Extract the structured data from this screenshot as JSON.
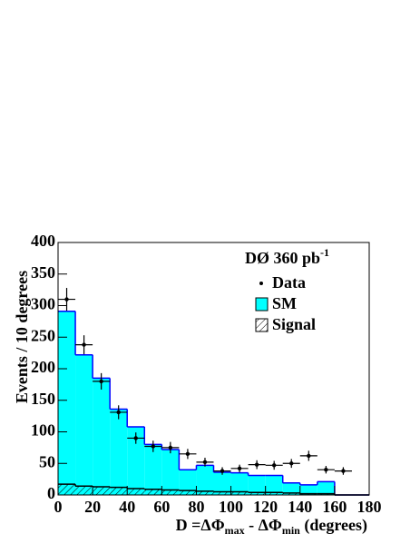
{
  "chart_data": {
    "type": "histogram",
    "y_label": "Events / 10 degrees",
    "x_label": {
      "lead": "D =",
      "phi1": "ΔΦ",
      "sub1": "max",
      "mid": " - ΔΦ",
      "sub2": "min",
      "tail": " (degrees)"
    },
    "annotation": {
      "text": "DØ 360 pb",
      "sup": "-1"
    },
    "bins": [
      0,
      10,
      20,
      30,
      40,
      50,
      60,
      70,
      80,
      90,
      100,
      110,
      120,
      130,
      140,
      150,
      160,
      170,
      180
    ],
    "series": [
      {
        "name": "SM",
        "color": "#00ffff",
        "edge": "#0000ff",
        "values": [
          291,
          222,
          185,
          136,
          108,
          80,
          72,
          40,
          47,
          36,
          35,
          31,
          31,
          19,
          16,
          21,
          0,
          0
        ]
      },
      {
        "name": "Signal",
        "color": "#000000",
        "values": [
          17,
          14,
          13,
          12,
          10,
          9,
          8,
          7,
          6,
          5,
          5,
          4,
          4,
          3,
          2,
          2,
          0,
          0
        ]
      }
    ],
    "data": {
      "name": "Data",
      "color": "#000000",
      "x": [
        5,
        15,
        25,
        35,
        45,
        55,
        65,
        75,
        85,
        95,
        105,
        115,
        125,
        135,
        145,
        155,
        165
      ],
      "values": [
        310,
        238,
        180,
        131,
        90,
        77,
        75,
        65,
        52,
        38,
        42,
        48,
        47,
        50,
        62,
        40,
        38
      ],
      "errors": [
        18,
        15,
        13,
        11,
        9,
        9,
        9,
        8,
        7,
        6,
        6,
        7,
        7,
        7,
        8,
        6,
        6
      ]
    },
    "xlim": [
      0,
      180
    ],
    "xticks": [
      0,
      20,
      40,
      60,
      80,
      100,
      120,
      140,
      160,
      180
    ],
    "ylim": [
      0,
      400
    ],
    "yticks": [
      0,
      50,
      100,
      150,
      200,
      250,
      300,
      350,
      400
    ]
  }
}
